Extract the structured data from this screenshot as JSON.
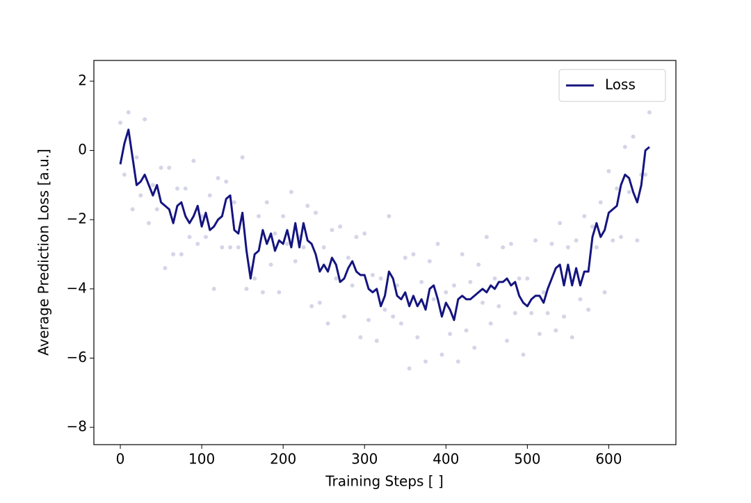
{
  "chart_data": {
    "type": "line",
    "xlabel": "Training Steps [ ]",
    "ylabel": "Average Prediction Loss [a.u.]",
    "x": [
      0,
      5,
      10,
      15,
      20,
      25,
      30,
      35,
      40,
      45,
      50,
      55,
      60,
      65,
      70,
      75,
      80,
      85,
      90,
      95,
      100,
      105,
      110,
      115,
      120,
      125,
      130,
      135,
      140,
      145,
      150,
      155,
      160,
      165,
      170,
      175,
      180,
      185,
      190,
      195,
      200,
      205,
      210,
      215,
      220,
      225,
      230,
      235,
      240,
      245,
      250,
      255,
      260,
      265,
      270,
      275,
      280,
      285,
      290,
      295,
      300,
      305,
      310,
      315,
      320,
      325,
      330,
      335,
      340,
      345,
      350,
      355,
      360,
      365,
      370,
      375,
      380,
      385,
      390,
      395,
      400,
      405,
      410,
      415,
      420,
      425,
      430,
      435,
      440,
      445,
      450,
      455,
      460,
      465,
      470,
      475,
      480,
      485,
      490,
      495,
      500,
      505,
      510,
      515,
      520,
      525,
      530,
      535,
      540,
      545,
      550,
      555,
      560,
      565,
      570,
      575,
      580,
      585,
      590,
      595,
      600,
      605,
      610,
      615,
      620,
      625,
      630,
      635,
      640,
      645,
      650
    ],
    "series": [
      {
        "name": "Loss",
        "color": "#14147f",
        "values": [
          -0.4,
          0.2,
          0.6,
          -0.2,
          -1.0,
          -0.9,
          -0.7,
          -1.0,
          -1.3,
          -1.0,
          -1.5,
          -1.6,
          -1.7,
          -2.1,
          -1.6,
          -1.5,
          -1.9,
          -2.1,
          -1.9,
          -1.6,
          -2.2,
          -1.8,
          -2.3,
          -2.2,
          -2.0,
          -1.9,
          -1.4,
          -1.3,
          -2.3,
          -2.4,
          -1.8,
          -2.9,
          -3.7,
          -3.0,
          -2.9,
          -2.3,
          -2.7,
          -2.4,
          -2.9,
          -2.6,
          -2.7,
          -2.3,
          -2.8,
          -2.1,
          -2.8,
          -2.1,
          -2.6,
          -2.7,
          -3.0,
          -3.5,
          -3.3,
          -3.5,
          -3.1,
          -3.3,
          -3.8,
          -3.7,
          -3.4,
          -3.2,
          -3.5,
          -3.6,
          -3.6,
          -4.0,
          -4.1,
          -4.0,
          -4.5,
          -4.2,
          -3.5,
          -3.7,
          -4.2,
          -4.3,
          -4.1,
          -4.5,
          -4.2,
          -4.5,
          -4.3,
          -4.6,
          -4.0,
          -3.9,
          -4.3,
          -4.8,
          -4.4,
          -4.6,
          -4.9,
          -4.3,
          -4.2,
          -4.3,
          -4.3,
          -4.2,
          -4.1,
          -4.0,
          -4.1,
          -3.9,
          -4.0,
          -3.8,
          -3.8,
          -3.7,
          -3.9,
          -3.8,
          -4.2,
          -4.4,
          -4.5,
          -4.3,
          -4.2,
          -4.2,
          -4.4,
          -4.0,
          -3.7,
          -3.4,
          -3.3,
          -3.9,
          -3.3,
          -3.9,
          -3.4,
          -3.9,
          -3.5,
          -3.5,
          -2.5,
          -2.1,
          -2.5,
          -2.3,
          -1.8,
          -1.7,
          -1.6,
          -1.0,
          -0.7,
          -0.8,
          -1.2,
          -1.5,
          -1.0,
          0.0,
          0.1
        ]
      }
    ],
    "scatter": {
      "color": "#14147f",
      "values": [
        0.8,
        -0.7,
        1.1,
        -1.7,
        -0.2,
        -1.3,
        0.9,
        -2.1,
        -1.0,
        -1.7,
        -0.5,
        -3.4,
        -0.5,
        -3.0,
        -1.1,
        -3.0,
        -1.1,
        -2.5,
        -0.3,
        -2.7,
        -1.9,
        -2.5,
        -1.3,
        -4.0,
        -0.8,
        -2.8,
        -0.9,
        -2.8,
        -1.5,
        -2.8,
        -0.2,
        -4.0,
        -3.4,
        -3.7,
        -1.9,
        -4.1,
        -1.5,
        -3.3,
        -2.4,
        -4.1,
        -1.9,
        -2.7,
        -1.2,
        -3.2,
        -2.5,
        -2.8,
        -1.6,
        -4.5,
        -1.8,
        -4.4,
        -2.8,
        -5.0,
        -2.3,
        -3.7,
        -2.2,
        -4.8,
        -3.1,
        -3.9,
        -2.5,
        -5.4,
        -2.4,
        -4.9,
        -3.6,
        -5.5,
        -3.7,
        -4.6,
        -1.9,
        -4.8,
        -3.9,
        -5.0,
        -3.1,
        -6.3,
        -3.0,
        -5.4,
        -3.8,
        -6.1,
        -3.2,
        -4.3,
        -2.7,
        -5.9,
        -4.1,
        -5.3,
        -3.9,
        -6.1,
        -3.0,
        -5.2,
        -3.8,
        -5.7,
        -3.3,
        -4.4,
        -2.5,
        -5.0,
        -3.7,
        -4.5,
        -2.8,
        -5.5,
        -2.7,
        -4.7,
        -3.7,
        -5.9,
        -3.7,
        -4.7,
        -2.6,
        -5.3,
        -4.1,
        -4.7,
        -2.7,
        -5.2,
        -2.1,
        -4.8,
        -2.8,
        -5.4,
        -2.6,
        -4.3,
        -1.9,
        -4.6,
        -2.2,
        -2.8,
        -1.5,
        -4.1,
        -0.6,
        -2.6,
        -1.1,
        -2.5,
        0.1,
        -1.2,
        0.4,
        -2.6,
        -0.7,
        -0.7,
        1.1
      ]
    },
    "xlim": [
      -32.5,
      682.5
    ],
    "ylim": [
      -8.5,
      2.6
    ],
    "xticks": [
      0,
      100,
      200,
      300,
      400,
      500,
      600
    ],
    "yticks": [
      {
        "value": -8,
        "label": "−8"
      },
      {
        "value": -6,
        "label": "−6"
      },
      {
        "value": -4,
        "label": "−4"
      },
      {
        "value": -2,
        "label": "−2"
      },
      0,
      2
    ],
    "legend": "upper right"
  }
}
